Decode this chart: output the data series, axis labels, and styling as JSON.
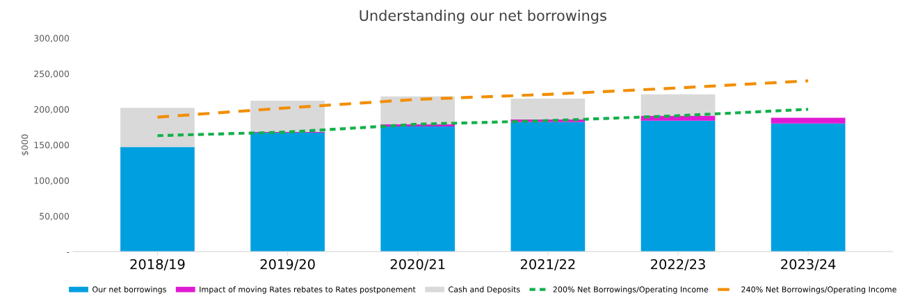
{
  "chart_data": {
    "type": "bar",
    "title": "Understanding our net borrowings",
    "ylabel": "$000",
    "stacked": true,
    "categories": [
      "2018/19",
      "2019/20",
      "2020/21",
      "2021/22",
      "2022/23",
      "2023/24"
    ],
    "series": [
      {
        "name": "Our net borrowings",
        "color": "#009fe0",
        "values": [
          147000,
          167000,
          176000,
          182000,
          184000,
          180000
        ]
      },
      {
        "name": "Impact of moving Rates rebates to Rates postponement",
        "color": "#e01ad2",
        "values": [
          0,
          1000,
          3000,
          4000,
          7000,
          8000
        ]
      },
      {
        "name": "Cash and Deposits",
        "color": "#d9d9d9",
        "values": [
          55000,
          44000,
          39000,
          29000,
          30000,
          0
        ]
      },
      {
        "name": "200% Net Borrowings/Operating Income",
        "color": "#13b04b",
        "type": "line",
        "line_style": "dotted",
        "values": [
          163000,
          168000,
          179000,
          184000,
          191000,
          200000
        ]
      },
      {
        "name": "240% Net Borrowings/Operating Income",
        "color": "#f28e00",
        "type": "line",
        "line_style": "dashed",
        "values": [
          189000,
          202000,
          214000,
          221000,
          230000,
          240000
        ]
      }
    ],
    "ylim": [
      0,
      300000
    ],
    "yticks": [
      {
        "value": 0,
        "label": "-"
      },
      {
        "value": 50000,
        "label": "50,000"
      },
      {
        "value": 100000,
        "label": "100,000"
      },
      {
        "value": 150000,
        "label": "150,000"
      },
      {
        "value": 200000,
        "label": "200,000"
      },
      {
        "value": 250000,
        "label": "250,000"
      },
      {
        "value": 300000,
        "label": "300,000"
      }
    ],
    "grid": false,
    "legend": "bottom"
  }
}
